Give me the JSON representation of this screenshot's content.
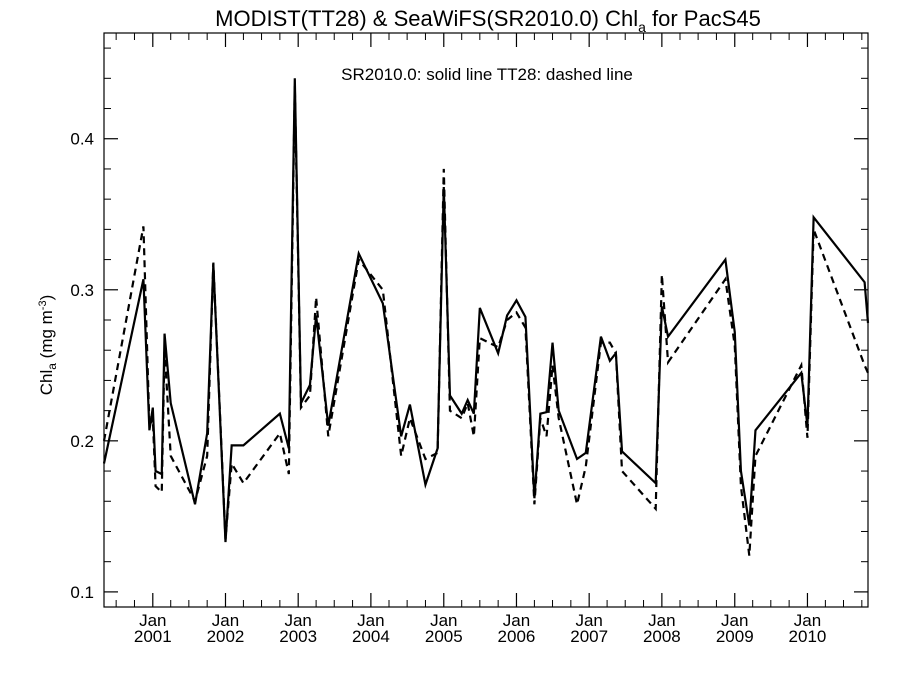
{
  "chart_data": {
    "type": "line",
    "title": {
      "main": "MODIST(TT28) & SeaWiFS(SR2010.0)  Chl",
      "sub": "a",
      "tail": " for PacS45"
    },
    "annotation": "SR2010.0: solid line   TT28: dashed line",
    "ylabel": {
      "base": "Chl",
      "sub": "a",
      "unit_start": " (mg m",
      "unit_sup": "-3",
      "unit_end": ")"
    },
    "xlim": [
      "2000-05-01",
      "2010-11-01"
    ],
    "ylim": [
      0.09,
      0.47
    ],
    "yticks": [
      0.1,
      0.2,
      0.3,
      0.4
    ],
    "ytick_labels": [
      "0.1",
      "0.2",
      "0.3",
      "0.4"
    ],
    "xtick_labels": [
      {
        "date": "2001-01-01",
        "month": "Jan",
        "year": "2001"
      },
      {
        "date": "2002-01-01",
        "month": "Jan",
        "year": "2002"
      },
      {
        "date": "2003-01-01",
        "month": "Jan",
        "year": "2003"
      },
      {
        "date": "2004-01-01",
        "month": "Jan",
        "year": "2004"
      },
      {
        "date": "2005-01-01",
        "month": "Jan",
        "year": "2005"
      },
      {
        "date": "2006-01-01",
        "month": "Jan",
        "year": "2006"
      },
      {
        "date": "2007-01-01",
        "month": "Jan",
        "year": "2007"
      },
      {
        "date": "2008-01-01",
        "month": "Jan",
        "year": "2008"
      },
      {
        "date": "2009-01-01",
        "month": "Jan",
        "year": "2009"
      },
      {
        "date": "2010-01-01",
        "month": "Jan",
        "year": "2010"
      }
    ],
    "series": [
      {
        "name": "SR2010.0",
        "style": "solid",
        "color": "#000000",
        "points": [
          [
            "2000-05-01",
            0.185
          ],
          [
            "2000-11-15",
            0.307
          ],
          [
            "2000-12-15",
            0.207
          ],
          [
            "2001-01-01",
            0.222
          ],
          [
            "2001-01-15",
            0.18
          ],
          [
            "2001-02-15",
            0.178
          ],
          [
            "2001-03-01",
            0.271
          ],
          [
            "2001-04-01",
            0.225
          ],
          [
            "2001-08-01",
            0.158
          ],
          [
            "2001-10-01",
            0.205
          ],
          [
            "2001-11-01",
            0.317
          ],
          [
            "2002-01-01",
            0.133
          ],
          [
            "2002-02-01",
            0.197
          ],
          [
            "2002-04-01",
            0.197
          ],
          [
            "2002-10-01",
            0.218
          ],
          [
            "2002-11-15",
            0.195
          ],
          [
            "2002-12-15",
            0.44
          ],
          [
            "2003-01-15",
            0.225
          ],
          [
            "2003-03-01",
            0.237
          ],
          [
            "2003-04-01",
            0.283
          ],
          [
            "2003-06-01",
            0.21
          ],
          [
            "2003-11-01",
            0.324
          ],
          [
            "2004-03-01",
            0.291
          ],
          [
            "2004-06-01",
            0.203
          ],
          [
            "2004-07-15",
            0.224
          ],
          [
            "2004-10-01",
            0.171
          ],
          [
            "2004-12-01",
            0.195
          ],
          [
            "2005-01-01",
            0.368
          ],
          [
            "2005-02-01",
            0.23
          ],
          [
            "2005-04-01",
            0.218
          ],
          [
            "2005-05-01",
            0.227
          ],
          [
            "2005-06-01",
            0.218
          ],
          [
            "2005-07-01",
            0.288
          ],
          [
            "2005-10-01",
            0.258
          ],
          [
            "2005-11-15",
            0.283
          ],
          [
            "2006-01-01",
            0.293
          ],
          [
            "2006-02-15",
            0.282
          ],
          [
            "2006-04-01",
            0.162
          ],
          [
            "2006-05-01",
            0.218
          ],
          [
            "2006-06-01",
            0.219
          ],
          [
            "2006-07-01",
            0.265
          ],
          [
            "2006-08-01",
            0.22
          ],
          [
            "2006-11-01",
            0.188
          ],
          [
            "2006-12-15",
            0.192
          ],
          [
            "2007-03-01",
            0.269
          ],
          [
            "2007-04-15",
            0.253
          ],
          [
            "2007-05-15",
            0.258
          ],
          [
            "2007-06-15",
            0.193
          ],
          [
            "2007-12-01",
            0.172
          ],
          [
            "2008-01-01",
            0.289
          ],
          [
            "2008-02-01",
            0.269
          ],
          [
            "2008-11-15",
            0.32
          ],
          [
            "2009-01-01",
            0.272
          ],
          [
            "2009-02-01",
            0.18
          ],
          [
            "2009-03-15",
            0.144
          ],
          [
            "2009-04-15",
            0.207
          ],
          [
            "2009-12-01",
            0.245
          ],
          [
            "2010-01-01",
            0.21
          ],
          [
            "2010-02-01",
            0.348
          ],
          [
            "2010-10-15",
            0.305
          ],
          [
            "2010-11-01",
            0.278
          ]
        ]
      },
      {
        "name": "TT28",
        "style": "dashed",
        "color": "#000000",
        "points": [
          [
            "2000-05-01",
            0.2
          ],
          [
            "2000-11-15",
            0.342
          ],
          [
            "2000-12-15",
            0.21
          ],
          [
            "2001-01-01",
            0.215
          ],
          [
            "2001-01-15",
            0.17
          ],
          [
            "2001-02-15",
            0.166
          ],
          [
            "2001-03-01",
            0.262
          ],
          [
            "2001-04-01",
            0.19
          ],
          [
            "2001-08-01",
            0.16
          ],
          [
            "2001-10-01",
            0.19
          ],
          [
            "2001-11-01",
            0.318
          ],
          [
            "2002-01-01",
            0.135
          ],
          [
            "2002-02-01",
            0.185
          ],
          [
            "2002-04-01",
            0.172
          ],
          [
            "2002-10-01",
            0.205
          ],
          [
            "2002-11-15",
            0.178
          ],
          [
            "2002-12-15",
            0.435
          ],
          [
            "2003-01-15",
            0.222
          ],
          [
            "2003-03-01",
            0.23
          ],
          [
            "2003-04-01",
            0.295
          ],
          [
            "2003-06-01",
            0.203
          ],
          [
            "2003-11-01",
            0.32
          ],
          [
            "2004-03-01",
            0.3
          ],
          [
            "2004-06-01",
            0.19
          ],
          [
            "2004-07-15",
            0.215
          ],
          [
            "2004-10-01",
            0.188
          ],
          [
            "2004-12-01",
            0.192
          ],
          [
            "2005-01-01",
            0.38
          ],
          [
            "2005-02-01",
            0.22
          ],
          [
            "2005-04-01",
            0.215
          ],
          [
            "2005-05-01",
            0.225
          ],
          [
            "2005-06-01",
            0.203
          ],
          [
            "2005-07-01",
            0.268
          ],
          [
            "2005-10-01",
            0.262
          ],
          [
            "2005-11-15",
            0.28
          ],
          [
            "2006-01-01",
            0.285
          ],
          [
            "2006-02-15",
            0.275
          ],
          [
            "2006-04-01",
            0.158
          ],
          [
            "2006-05-01",
            0.215
          ],
          [
            "2006-06-01",
            0.203
          ],
          [
            "2006-07-01",
            0.25
          ],
          [
            "2006-08-01",
            0.215
          ],
          [
            "2006-11-01",
            0.158
          ],
          [
            "2006-12-15",
            0.183
          ],
          [
            "2007-03-01",
            0.265
          ],
          [
            "2007-04-15",
            0.265
          ],
          [
            "2007-05-15",
            0.258
          ],
          [
            "2007-06-15",
            0.18
          ],
          [
            "2007-12-01",
            0.155
          ],
          [
            "2008-01-01",
            0.31
          ],
          [
            "2008-02-01",
            0.252
          ],
          [
            "2008-11-15",
            0.307
          ],
          [
            "2009-01-01",
            0.263
          ],
          [
            "2009-02-01",
            0.17
          ],
          [
            "2009-03-15",
            0.124
          ],
          [
            "2009-04-15",
            0.19
          ],
          [
            "2009-12-01",
            0.25
          ],
          [
            "2010-01-01",
            0.202
          ],
          [
            "2010-02-01",
            0.34
          ],
          [
            "2010-10-15",
            0.25
          ],
          [
            "2010-11-01",
            0.245
          ]
        ]
      }
    ],
    "grid": false,
    "legend": "none"
  }
}
